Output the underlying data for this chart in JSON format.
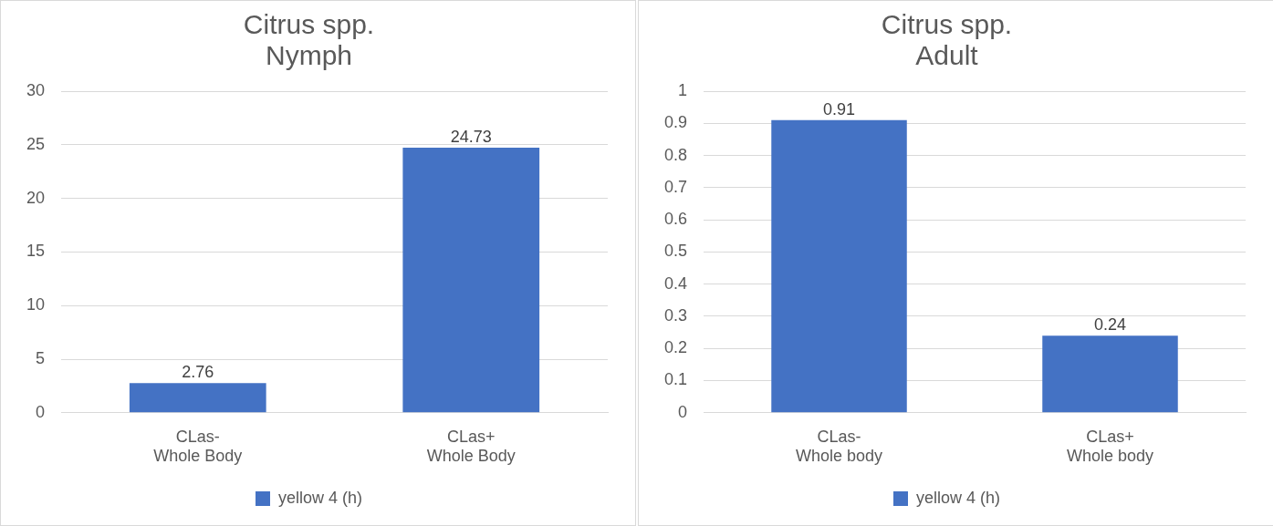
{
  "chart_data": [
    {
      "type": "bar",
      "title": "Citrus spp.\nNymph",
      "categories": [
        "CLas-\nWhole Body",
        "CLas+\nWhole Body"
      ],
      "series": [
        {
          "name": "yellow 4 (h)",
          "color": "#4472c4",
          "values": [
            2.76,
            24.73
          ]
        }
      ],
      "ylim": [
        0,
        30
      ],
      "yticks": [
        0,
        5,
        10,
        15,
        20,
        25,
        30
      ],
      "grid": "y",
      "legend": "bottom",
      "data_labels": true
    },
    {
      "type": "bar",
      "title": "Citrus spp.\nAdult",
      "categories": [
        "CLas-\nWhole body",
        "CLas+\nWhole body"
      ],
      "series": [
        {
          "name": "yellow 4 (h)",
          "color": "#4472c4",
          "values": [
            0.91,
            0.24
          ]
        }
      ],
      "ylim": [
        0,
        1
      ],
      "yticks": [
        0,
        0.1,
        0.2,
        0.3,
        0.4,
        0.5,
        0.6,
        0.7,
        0.8,
        0.9,
        1
      ],
      "grid": "y",
      "legend": "bottom",
      "data_labels": true
    }
  ]
}
